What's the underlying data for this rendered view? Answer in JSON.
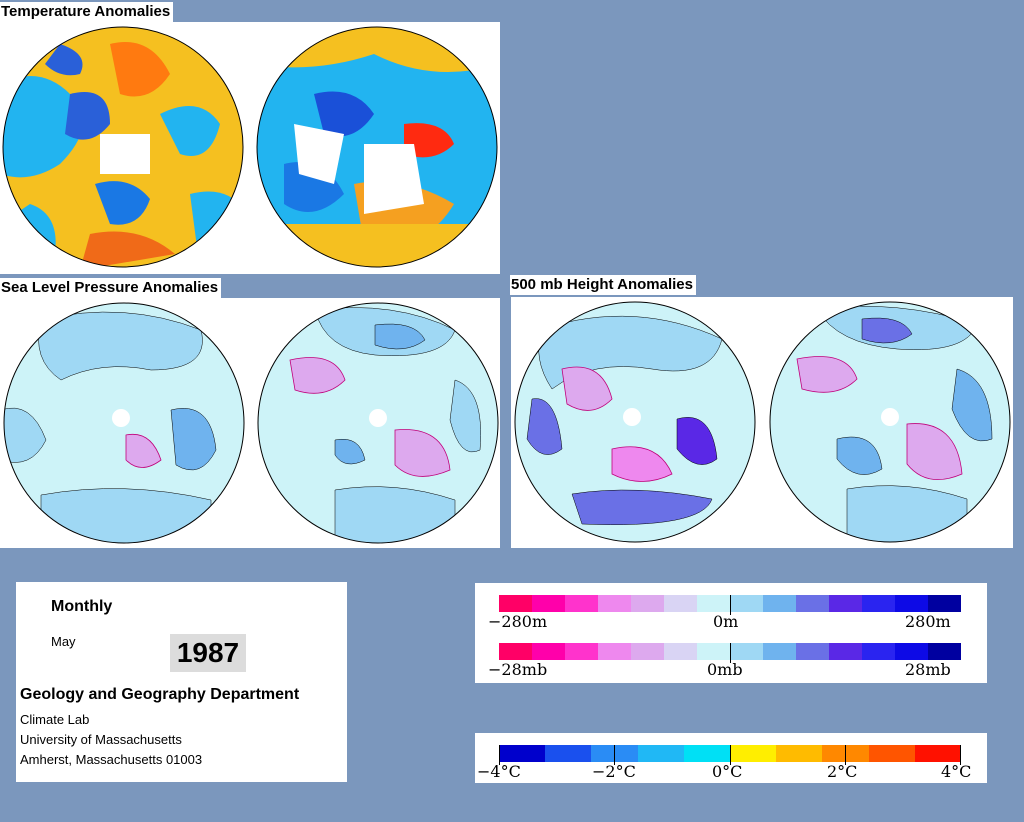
{
  "sections": {
    "temperature": "Temperature Anomalies",
    "slp": "Sea Level Pressure Anomalies",
    "height": "500 mb Height Anomalies"
  },
  "info": {
    "period": "Monthly",
    "month": "May",
    "year": "1987",
    "department": "Geology and Geography Department",
    "lab": "Climate Lab",
    "university": "University of Massachusetts",
    "address": "Amherst, Massachusetts 01003"
  },
  "legends": {
    "height": {
      "min": "−280m",
      "mid": "0m",
      "max": "280m"
    },
    "pressure": {
      "min": "−28mb",
      "mid": "0mb",
      "max": "28mb"
    },
    "temperature": {
      "t1": "−4°C",
      "t2": "−2°C",
      "t3": "0°C",
      "t4": "2°C",
      "t5": "4°C"
    }
  },
  "colors": {
    "background": "#7b97bd",
    "anomaly_scale": [
      "#ff0066",
      "#ff00aa",
      "#ff33cc",
      "#ee88ee",
      "#dda9ee",
      "#d9d4f4",
      "#cdf3f8",
      "#9fd8f4",
      "#6fb3ee",
      "#6a70e6",
      "#5a28e6",
      "#2a24f0",
      "#0d0ae6",
      "#0000a0"
    ],
    "temperature_scale": [
      "#0000cc",
      "#1a50ee",
      "#2a8cf5",
      "#20b8f5",
      "#00e0f5",
      "#ffee00",
      "#ffbb00",
      "#ff8800",
      "#ff5500",
      "#ff1100"
    ]
  }
}
